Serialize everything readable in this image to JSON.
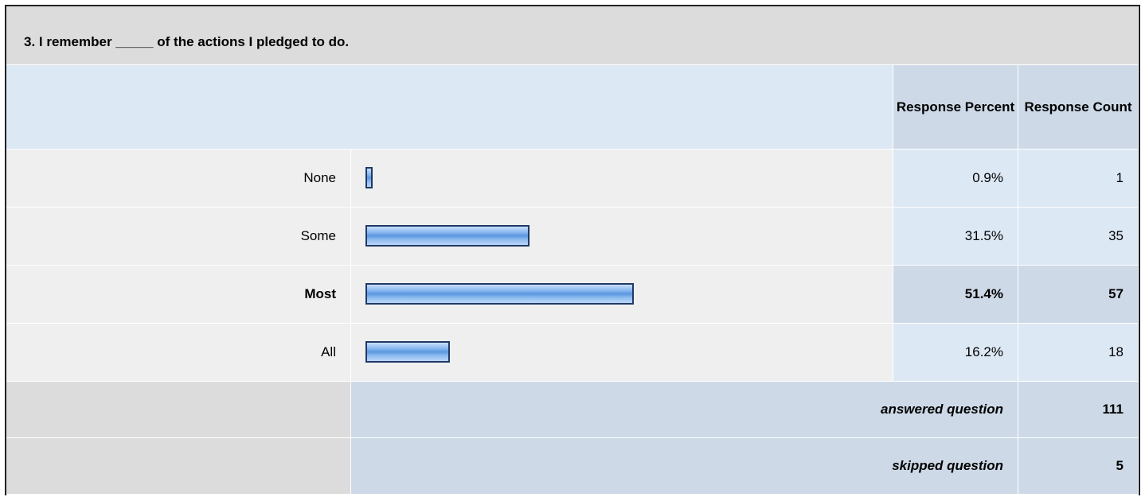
{
  "question": {
    "title": "3. I remember _____ of the actions I pledged to do."
  },
  "table": {
    "headers": [
      "Response Percent",
      "Response Count"
    ],
    "rows": [
      {
        "label": "None",
        "percent": 0.9,
        "percent_label": "0.9%",
        "count": 1
      },
      {
        "label": "Some",
        "percent": 31.5,
        "percent_label": "31.5%",
        "count": 35
      },
      {
        "label": "Most",
        "percent": 51.4,
        "percent_label": "51.4%",
        "count": 57,
        "bold": true
      },
      {
        "label": "All",
        "percent": 16.2,
        "percent_label": "16.2%",
        "count": 18
      }
    ],
    "summary": [
      {
        "label": "answered question",
        "count": 111
      },
      {
        "label": "skipped question",
        "count": 5
      }
    ]
  }
}
